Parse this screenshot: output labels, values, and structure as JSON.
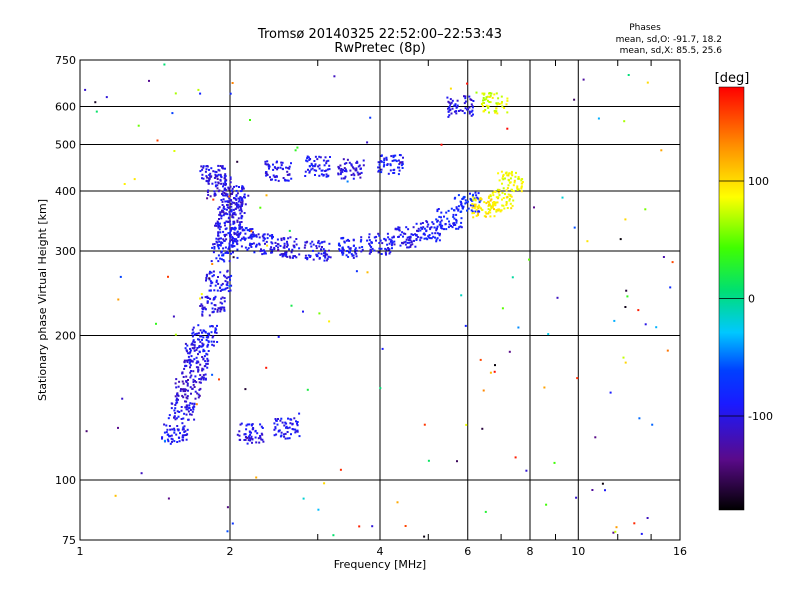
{
  "chart_data": {
    "type": "scatter",
    "title": "Tromsø 20140325 22:52:00–22:53:43",
    "subtitle": "RwPretec (8p)",
    "xlabel": "Frequency [MHz]",
    "ylabel": "Stationary phase Virtual Height [km]",
    "x_scale": "log",
    "y_scale": "log",
    "xlim": [
      1,
      16
    ],
    "ylim": [
      75,
      750
    ],
    "x_ticks": [
      1,
      2,
      4,
      6,
      8,
      10,
      16
    ],
    "x_minor_ticks": [
      3,
      5,
      7,
      9,
      12,
      14
    ],
    "y_ticks": [
      75,
      100,
      200,
      300,
      400,
      500,
      600,
      750
    ],
    "grid": true,
    "phase_legend": {
      "title": "Phases",
      "line_o": "mean, sd,O: -91.7, 18.2",
      "line_x": "mean, sd,X:  85.5, 25.6"
    },
    "colorbar": {
      "label": "[deg]",
      "range": [
        -180,
        180
      ],
      "ticks": [
        100,
        0,
        -100
      ],
      "tick_labels": [
        "100",
        "0",
        "-100"
      ]
    },
    "series": [
      {
        "description_values": "approximate density of echoes (phase in deg)",
        "points": [
          [
            1.55,
            125,
            -95
          ],
          [
            1.6,
            140,
            -100
          ],
          [
            1.65,
            155,
            -110
          ],
          [
            1.7,
            170,
            -105
          ],
          [
            1.72,
            185,
            -98
          ],
          [
            1.78,
            200,
            -92
          ],
          [
            1.85,
            230,
            -100
          ],
          [
            1.9,
            260,
            -95
          ],
          [
            1.95,
            300,
            -90
          ],
          [
            1.98,
            330,
            -100
          ],
          [
            2.0,
            350,
            -95
          ],
          [
            2.02,
            370,
            -105
          ],
          [
            2.05,
            390,
            -98
          ],
          [
            1.9,
            410,
            -110
          ],
          [
            1.85,
            430,
            -100
          ],
          [
            2.1,
            320,
            -90
          ],
          [
            2.3,
            310,
            -95
          ],
          [
            2.6,
            305,
            -100
          ],
          [
            3.0,
            300,
            -98
          ],
          [
            3.5,
            305,
            -92
          ],
          [
            4.0,
            310,
            -95
          ],
          [
            4.5,
            320,
            -100
          ],
          [
            5.0,
            330,
            -90
          ],
          [
            5.5,
            350,
            -85
          ],
          [
            6.0,
            380,
            -80
          ],
          [
            6.5,
            370,
            95
          ],
          [
            7.0,
            380,
            90
          ],
          [
            7.3,
            420,
            85
          ],
          [
            2.5,
            440,
            -100
          ],
          [
            3.0,
            450,
            -95
          ],
          [
            3.5,
            445,
            -105
          ],
          [
            4.2,
            455,
            -90
          ],
          [
            5.8,
            600,
            -100
          ],
          [
            6.8,
            610,
            80
          ],
          [
            2.2,
            125,
            -100
          ],
          [
            2.6,
            128,
            -95
          ]
        ]
      }
    ]
  }
}
